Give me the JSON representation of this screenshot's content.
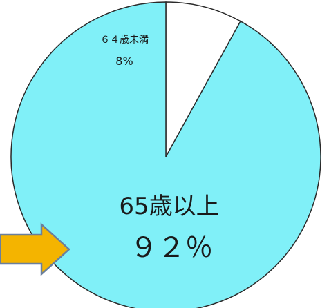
{
  "chart_data": {
    "type": "pie",
    "title": "",
    "slices": [
      {
        "label": "65歳以上",
        "value": 92,
        "value_label": "９２％",
        "color": "#80f0f8"
      },
      {
        "label": "６４歳未満",
        "value": 8,
        "value_label": "8%",
        "color": "#ffffff"
      }
    ],
    "legend": "none",
    "slice_outline_color": "#2a2a2a"
  },
  "annotation": {
    "arrow_fill": "#f4b400",
    "arrow_stroke": "#6a7f9c",
    "arrow_points_to": "65歳以上"
  }
}
